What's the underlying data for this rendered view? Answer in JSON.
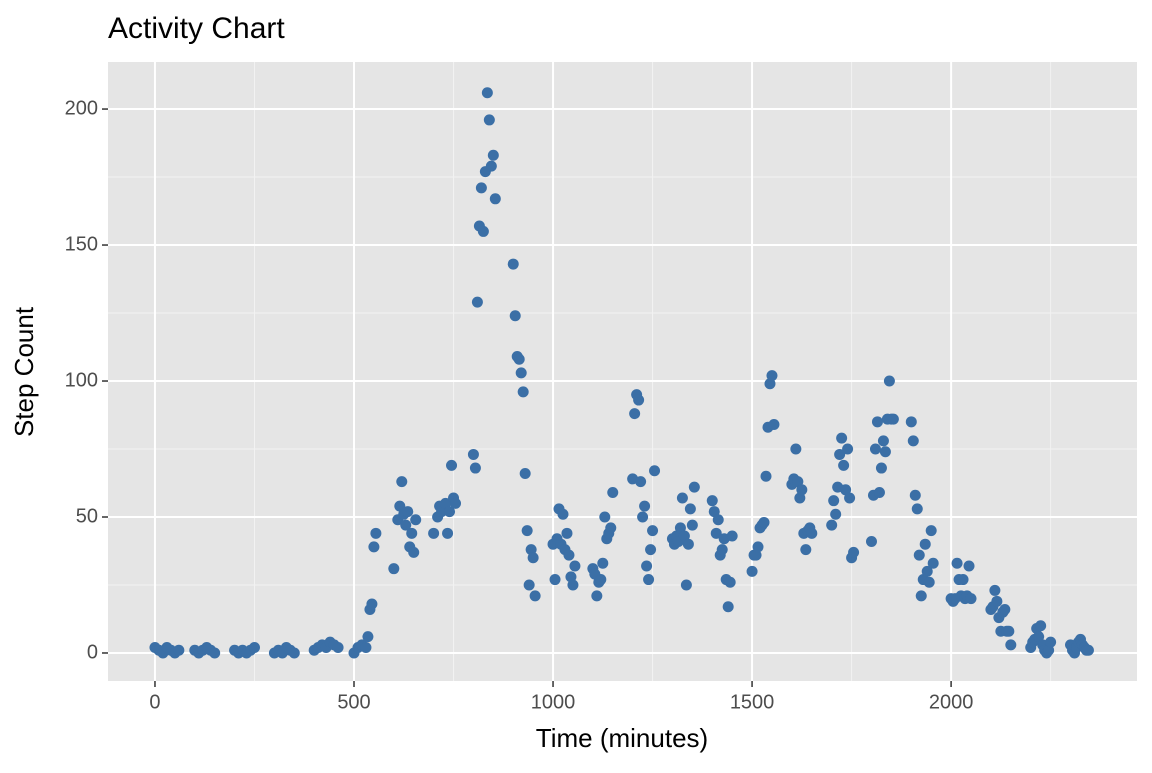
{
  "chart_data": {
    "type": "scatter",
    "title": "Activity Chart",
    "x_label": "Time (minutes)",
    "y_label": "Step Count",
    "x": [
      0,
      10,
      20,
      30,
      40,
      50,
      60,
      100,
      110,
      120,
      130,
      140,
      150,
      200,
      210,
      220,
      230,
      240,
      250,
      300,
      310,
      320,
      330,
      340,
      350,
      400,
      410,
      420,
      430,
      440,
      450,
      460,
      500,
      510,
      520,
      530,
      535,
      540,
      545,
      550,
      555,
      600,
      610,
      615,
      620,
      625,
      630,
      635,
      640,
      645,
      650,
      655,
      700,
      710,
      715,
      720,
      730,
      735,
      740,
      745,
      750,
      755,
      800,
      805,
      810,
      815,
      820,
      825,
      830,
      835,
      840,
      845,
      850,
      855,
      900,
      905,
      910,
      915,
      920,
      925,
      930,
      935,
      940,
      945,
      950,
      955,
      1000,
      1005,
      1010,
      1015,
      1020,
      1025,
      1030,
      1035,
      1040,
      1045,
      1050,
      1055,
      1100,
      1105,
      1110,
      1115,
      1120,
      1125,
      1130,
      1135,
      1140,
      1145,
      1150,
      1200,
      1205,
      1210,
      1215,
      1220,
      1225,
      1230,
      1235,
      1240,
      1245,
      1250,
      1255,
      1300,
      1305,
      1310,
      1315,
      1320,
      1325,
      1330,
      1335,
      1340,
      1345,
      1350,
      1355,
      1400,
      1405,
      1410,
      1415,
      1420,
      1425,
      1430,
      1435,
      1440,
      1445,
      1450,
      1500,
      1505,
      1510,
      1515,
      1520,
      1525,
      1530,
      1535,
      1540,
      1545,
      1550,
      1555,
      1600,
      1605,
      1610,
      1615,
      1620,
      1625,
      1630,
      1635,
      1640,
      1645,
      1650,
      1700,
      1705,
      1710,
      1715,
      1720,
      1725,
      1730,
      1735,
      1740,
      1745,
      1750,
      1755,
      1800,
      1805,
      1810,
      1815,
      1820,
      1825,
      1830,
      1835,
      1840,
      1845,
      1850,
      1855,
      1900,
      1905,
      1910,
      1915,
      1920,
      1925,
      1930,
      1935,
      1940,
      1945,
      1950,
      1955,
      2000,
      2005,
      2010,
      2015,
      2020,
      2025,
      2030,
      2035,
      2040,
      2045,
      2050,
      2100,
      2105,
      2110,
      2115,
      2120,
      2125,
      2130,
      2135,
      2140,
      2145,
      2150,
      2200,
      2205,
      2210,
      2215,
      2220,
      2225,
      2230,
      2235,
      2240,
      2245,
      2250,
      2300,
      2305,
      2310,
      2315,
      2320,
      2325,
      2330,
      2335,
      2340,
      2345
    ],
    "series": [
      {
        "name": "Step Count",
        "color": "#3b6fa6",
        "values": [
          2,
          1,
          0,
          2,
          1,
          0,
          1,
          1,
          0,
          1,
          2,
          1,
          0,
          1,
          0,
          1,
          0,
          1,
          2,
          0,
          1,
          0,
          2,
          1,
          0,
          1,
          2,
          3,
          2,
          4,
          3,
          2,
          0,
          2,
          3,
          2,
          6,
          16,
          18,
          39,
          44,
          31,
          49,
          54,
          63,
          51,
          47,
          52,
          39,
          44,
          37,
          49,
          44,
          50,
          54,
          52,
          55,
          44,
          52,
          69,
          57,
          55,
          73,
          68,
          129,
          157,
          171,
          155,
          177,
          206,
          196,
          179,
          183,
          167,
          143,
          124,
          109,
          108,
          103,
          96,
          66,
          45,
          25,
          38,
          35,
          21,
          40,
          27,
          42,
          53,
          40,
          51,
          38,
          44,
          36,
          28,
          25,
          32,
          31,
          29,
          21,
          26,
          27,
          33,
          50,
          42,
          44,
          46,
          59,
          64,
          88,
          95,
          93,
          63,
          50,
          54,
          32,
          27,
          38,
          45,
          67,
          42,
          40,
          43,
          41,
          46,
          57,
          43,
          25,
          40,
          53,
          47,
          61,
          56,
          52,
          44,
          49,
          36,
          38,
          42,
          27,
          17,
          26,
          43,
          30,
          36,
          36,
          39,
          46,
          47,
          48,
          65,
          83,
          99,
          102,
          84,
          62,
          64,
          75,
          63,
          57,
          60,
          44,
          38,
          45,
          46,
          44,
          47,
          56,
          51,
          61,
          73,
          79,
          69,
          60,
          75,
          57,
          35,
          37,
          41,
          58,
          75,
          85,
          59,
          68,
          78,
          74,
          86,
          100,
          86,
          86,
          85,
          78,
          58,
          53,
          36,
          21,
          27,
          40,
          30,
          26,
          45,
          33,
          20,
          19,
          20,
          33,
          27,
          21,
          27,
          20,
          21,
          32,
          20,
          16,
          17,
          23,
          19,
          13,
          8,
          15,
          16,
          8,
          8,
          3,
          2,
          4,
          5,
          9,
          6,
          10,
          3,
          1,
          0,
          1,
          4,
          3,
          1,
          0,
          2,
          4,
          5,
          3,
          2,
          1,
          1
        ]
      }
    ],
    "xlim": [
      -118,
      2467
    ],
    "ylim": [
      -10.3,
      217.3
    ],
    "xticks": [
      0,
      500,
      1000,
      1500,
      2000
    ],
    "yticks": [
      0,
      50,
      100,
      150,
      200
    ],
    "grid": true
  }
}
